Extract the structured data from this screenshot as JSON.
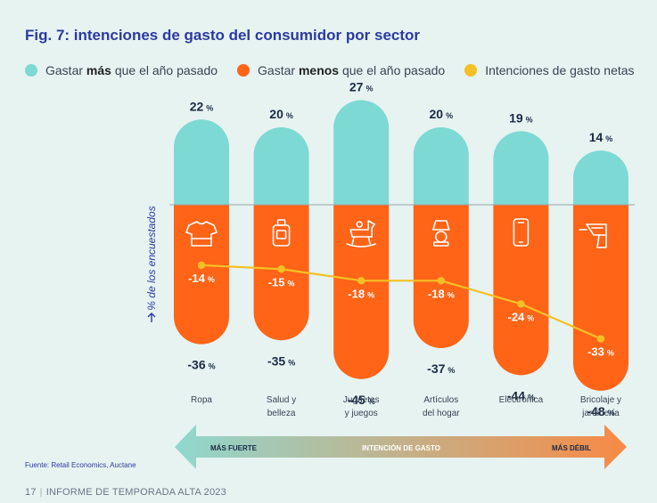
{
  "page": {
    "title": "Fig. 7: intenciones de gasto del consumidor por sector",
    "source": "Fuente: Retail Economics, Auctane",
    "page_number": "17",
    "report_name": "INFORME DE TEMPORADA ALTA 2023"
  },
  "legend": [
    {
      "pre": "Gastar ",
      "bold": "más",
      "post": " que el año pasado",
      "color": "#7dd9d3"
    },
    {
      "pre": "Gastar ",
      "bold": "menos",
      "post": " que el año pasado",
      "color": "#ff6417"
    },
    {
      "pre": "Intenciones de gasto netas",
      "bold": "",
      "post": "",
      "color": "#f5c025"
    }
  ],
  "colors": {
    "more": "#7dd9d3",
    "less": "#ff6417",
    "net": "#f5c025",
    "baseline": "#9aa3ad",
    "value_text": "#1b2a47",
    "category_text": "#3a4354",
    "ylabel_text": "#2b3aa0"
  },
  "arrow": {
    "left_label": "MÁS FUERTE",
    "center_label": "INTENCIÓN DE GASTO",
    "right_label": "MÁS DÉBIL",
    "color_start": "#8fd8cf",
    "color_end": "#f78a45"
  },
  "icons": [
    "tshirt-icon",
    "perfume-bottle-icon",
    "rocking-horse-icon",
    "lamp-icon",
    "smartphone-icon",
    "drill-icon"
  ],
  "chart_data": {
    "type": "bar",
    "ylabel": "% de los encuestados",
    "unit": "%",
    "categories": [
      "Ropa",
      "Salud y belleza",
      "Juguetes y juegos",
      "Artículos del hogar",
      "Electrónica",
      "Bricolaje y jardinería"
    ],
    "category_lines": [
      [
        "Ropa"
      ],
      [
        "Salud y",
        "belleza"
      ],
      [
        "Juguetes",
        "y juegos"
      ],
      [
        "Artículos",
        "del hogar"
      ],
      [
        "Electrónica"
      ],
      [
        "Bricolaje y",
        "jardinería"
      ]
    ],
    "series": [
      {
        "name": "Gastar más que el año pasado",
        "values": [
          22,
          20,
          27,
          20,
          19,
          14
        ]
      },
      {
        "name": "Gastar menos que el año pasado",
        "values": [
          -36,
          -35,
          -45,
          -37,
          -44,
          -48
        ]
      },
      {
        "name": "Intenciones de gasto netas",
        "values": [
          -14,
          -15,
          -18,
          -18,
          -24,
          -33
        ]
      }
    ]
  }
}
